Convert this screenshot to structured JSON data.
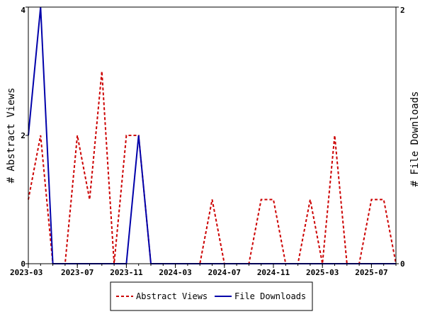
{
  "chart_data": {
    "type": "line",
    "x": [
      "2023-03",
      "2023-04",
      "2023-05",
      "2023-06",
      "2023-07",
      "2023-08",
      "2023-09",
      "2023-10",
      "2023-11",
      "2023-12",
      "2024-01",
      "2024-02",
      "2024-03",
      "2024-04",
      "2024-05",
      "2024-06",
      "2024-07",
      "2024-08",
      "2024-09",
      "2024-10",
      "2024-11",
      "2024-12",
      "2025-01",
      "2025-02",
      "2025-03",
      "2025-04",
      "2025-05",
      "2025-06",
      "2025-07",
      "2025-08",
      "2025-09"
    ],
    "x_tick_labels": [
      "2023-03",
      "2023-07",
      "2023-11",
      "2024-03",
      "2024-07",
      "2024-11",
      "2025-03",
      "2025-07"
    ],
    "series": [
      {
        "name": "Abstract Views",
        "axis": "left",
        "color": "#cc0000",
        "style": "dashed",
        "values": [
          1,
          2,
          0,
          0,
          2,
          1,
          3,
          0,
          2,
          2,
          0,
          0,
          0,
          0,
          0,
          1,
          0,
          0,
          0,
          1,
          1,
          0,
          0,
          1,
          0,
          2,
          0,
          0,
          1,
          1,
          0
        ]
      },
      {
        "name": "File Downloads",
        "axis": "right",
        "color": "#0000aa",
        "style": "solid",
        "values": [
          1,
          2,
          0,
          0,
          0,
          0,
          0,
          0,
          0,
          1,
          0,
          0,
          0,
          0,
          0,
          0,
          0,
          0,
          0,
          0,
          0,
          0,
          0,
          0,
          0,
          0,
          0,
          0,
          0,
          0,
          0
        ]
      }
    ],
    "ylabel_left": "# Abstract Views",
    "ylabel_right": "# File Downloads",
    "ylim_left": [
      0,
      4
    ],
    "ylim_right": [
      0,
      2
    ],
    "y_ticks_left": [
      "0",
      "2",
      "4"
    ],
    "y_ticks_right": [
      "0",
      "2"
    ],
    "grid": false,
    "legend_placement": "bottom-center"
  }
}
